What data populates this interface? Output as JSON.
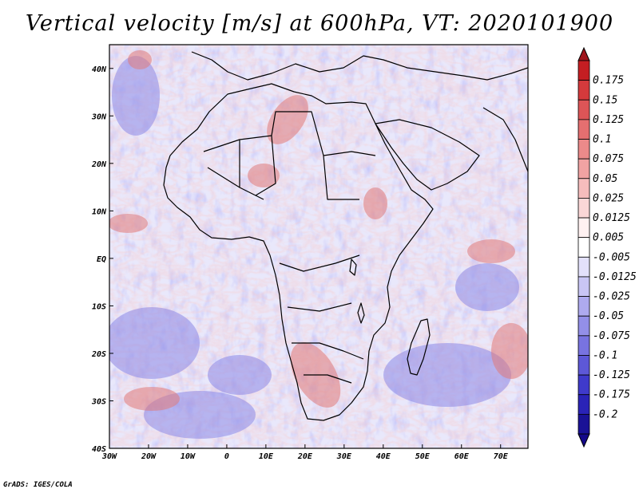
{
  "title": "Vertical velocity [m/s] at 600hPa, VT: 2020101900",
  "credit": "GrADS: IGES/COLA",
  "map": {
    "lon_range": [
      -30,
      77
    ],
    "lat_range": [
      -40,
      45
    ],
    "lon_ticks": [
      {
        "value": -30,
        "label": "30W"
      },
      {
        "value": -20,
        "label": "20W"
      },
      {
        "value": -10,
        "label": "10W"
      },
      {
        "value": 0,
        "label": "0"
      },
      {
        "value": 10,
        "label": "10E"
      },
      {
        "value": 20,
        "label": "20E"
      },
      {
        "value": 30,
        "label": "30E"
      },
      {
        "value": 40,
        "label": "40E"
      },
      {
        "value": 50,
        "label": "50E"
      },
      {
        "value": 60,
        "label": "60E"
      },
      {
        "value": 70,
        "label": "70E"
      }
    ],
    "lat_ticks": [
      {
        "value": 40,
        "label": "40N"
      },
      {
        "value": 30,
        "label": "30N"
      },
      {
        "value": 20,
        "label": "20N"
      },
      {
        "value": 10,
        "label": "10N"
      },
      {
        "value": 0,
        "label": "EQ"
      },
      {
        "value": -10,
        "label": "10S"
      },
      {
        "value": -20,
        "label": "20S"
      },
      {
        "value": -30,
        "label": "30S"
      },
      {
        "value": -40,
        "label": "40S"
      }
    ]
  },
  "colorbar": {
    "levels": [
      "0.175",
      "0.15",
      "0.125",
      "0.1",
      "0.075",
      "0.05",
      "0.025",
      "0.0125",
      "0.005",
      "-0.005",
      "-0.0125",
      "-0.025",
      "-0.05",
      "-0.075",
      "-0.1",
      "-0.125",
      "-0.175",
      "-0.2"
    ],
    "colors": [
      "#c41e22",
      "#d43a3c",
      "#dd5557",
      "#e56f70",
      "#ec8a8a",
      "#f1a3a3",
      "#f6bdbd",
      "#fad7d7",
      "#fff1f1",
      "#ffffff",
      "#e3e1fb",
      "#c9c6f5",
      "#aeaaef",
      "#938fe8",
      "#7873e0",
      "#5d58d7",
      "#3f3acb",
      "#2a23b7",
      "#1a1296"
    ],
    "top_color": "#a0151c",
    "bottom_color": "#14088a"
  }
}
